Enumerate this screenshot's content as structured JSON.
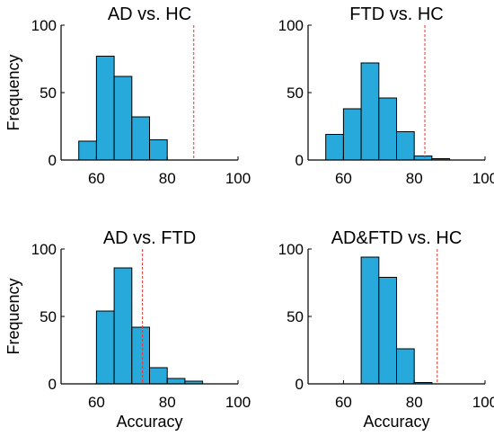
{
  "chart_data": [
    {
      "type": "bar",
      "title": "AD vs. HC",
      "xlabel": "",
      "ylabel": "Frequency",
      "xlim": [
        50,
        100
      ],
      "ylim": [
        0,
        100
      ],
      "xticks": [
        "60",
        "80",
        "100"
      ],
      "yticks": [
        "0",
        "50",
        "100"
      ],
      "bin_width": 5,
      "bins": [
        {
          "start": 55,
          "value": 14
        },
        {
          "start": 60,
          "value": 77
        },
        {
          "start": 65,
          "value": 62
        },
        {
          "start": 70,
          "value": 32
        },
        {
          "start": 75,
          "value": 15
        }
      ],
      "threshold": 87.5
    },
    {
      "type": "bar",
      "title": "FTD vs. HC",
      "xlabel": "",
      "ylabel": "",
      "xlim": [
        50,
        100
      ],
      "ylim": [
        0,
        100
      ],
      "xticks": [
        "60",
        "80",
        "100"
      ],
      "yticks": [
        "0",
        "50",
        "100"
      ],
      "bin_width": 5,
      "bins": [
        {
          "start": 55,
          "value": 19
        },
        {
          "start": 60,
          "value": 38
        },
        {
          "start": 65,
          "value": 72
        },
        {
          "start": 70,
          "value": 46
        },
        {
          "start": 75,
          "value": 21
        },
        {
          "start": 80,
          "value": 3
        },
        {
          "start": 85,
          "value": 1
        }
      ],
      "threshold": 83
    },
    {
      "type": "bar",
      "title": "AD vs. FTD",
      "xlabel": "Accuracy",
      "ylabel": "Frequency",
      "xlim": [
        50,
        100
      ],
      "ylim": [
        0,
        100
      ],
      "xticks": [
        "60",
        "80",
        "100"
      ],
      "yticks": [
        "0",
        "50",
        "100"
      ],
      "bin_width": 5,
      "bins": [
        {
          "start": 60,
          "value": 54
        },
        {
          "start": 65,
          "value": 86
        },
        {
          "start": 70,
          "value": 42
        },
        {
          "start": 75,
          "value": 12
        },
        {
          "start": 80,
          "value": 4
        },
        {
          "start": 85,
          "value": 2
        }
      ],
      "threshold": 73
    },
    {
      "type": "bar",
      "title": "AD&FTD vs. HC",
      "xlabel": "Accuracy",
      "ylabel": "",
      "xlim": [
        50,
        100
      ],
      "ylim": [
        0,
        100
      ],
      "xticks": [
        "60",
        "80",
        "100"
      ],
      "yticks": [
        "0",
        "50",
        "100"
      ],
      "bin_width": 5,
      "bins": [
        {
          "start": 65,
          "value": 94
        },
        {
          "start": 70,
          "value": 79
        },
        {
          "start": 75,
          "value": 26
        },
        {
          "start": 80,
          "value": 1
        }
      ],
      "threshold": 86.5
    }
  ],
  "colors": {
    "bar_fill": "#27AADB",
    "bar_edge": "#000000",
    "threshold_line": "#E8332C",
    "axis": "#000000"
  }
}
